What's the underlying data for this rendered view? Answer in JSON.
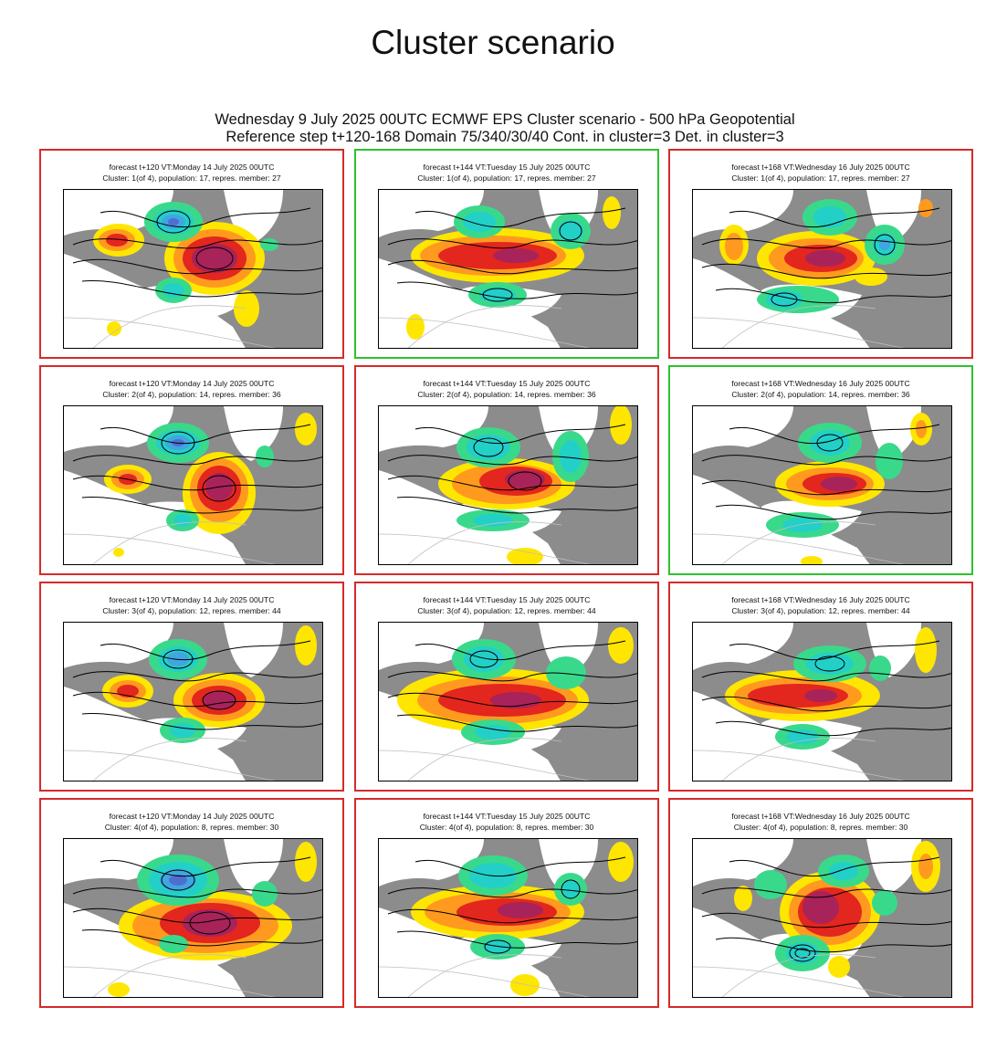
{
  "page_title": "Cluster scenario",
  "header": {
    "line1": "Wednesday 9 July 2025 00UTC ECMWF EPS Cluster scenario - 500 hPa Geopotential",
    "line2": "Reference step t+120-168 Domain 75/340/30/40 Cont. in cluster=3 Det. in cluster=3"
  },
  "colors": {
    "frame_default": "#d62a2a",
    "frame_representative": "#2ec32e",
    "land": "#8c8c8c",
    "ocean": "#ffffff",
    "anomaly_positive": [
      "#ffe600",
      "#ff9a1f",
      "#e3261e",
      "#a8235a"
    ],
    "anomaly_negative": [
      "#39d98c",
      "#22d0c8",
      "#3fa6e0",
      "#4f6fd0"
    ]
  },
  "panels": [
    {
      "title": "forecast t+120 VT:Monday 14 July 2025 00UTC",
      "subtitle": "Cluster: 1(of 4), population: 17, repres. member: 27",
      "representative": false
    },
    {
      "title": "forecast t+144 VT:Tuesday 15 July 2025 00UTC",
      "subtitle": "Cluster: 1(of 4), population: 17, repres. member: 27",
      "representative": true
    },
    {
      "title": "forecast t+168 VT:Wednesday 16 July 2025 00UTC",
      "subtitle": "Cluster: 1(of 4), population: 17, repres. member: 27",
      "representative": false
    },
    {
      "title": "forecast t+120 VT:Monday 14 July 2025 00UTC",
      "subtitle": "Cluster: 2(of 4), population: 14, repres. member: 36",
      "representative": false
    },
    {
      "title": "forecast t+144 VT:Tuesday 15 July 2025 00UTC",
      "subtitle": "Cluster: 2(of 4), population: 14, repres. member: 36",
      "representative": false
    },
    {
      "title": "forecast t+168 VT:Wednesday 16 July 2025 00UTC",
      "subtitle": "Cluster: 2(of 4), population: 14, repres. member: 36",
      "representative": true
    },
    {
      "title": "forecast t+120 VT:Monday 14 July 2025 00UTC",
      "subtitle": "Cluster: 3(of 4), population: 12, repres. member: 44",
      "representative": false
    },
    {
      "title": "forecast t+144 VT:Tuesday 15 July 2025 00UTC",
      "subtitle": "Cluster: 3(of 4), population: 12, repres. member: 44",
      "representative": false
    },
    {
      "title": "forecast t+168 VT:Wednesday 16 July 2025 00UTC",
      "subtitle": "Cluster: 3(of 4), population: 12, repres. member: 44",
      "representative": false
    },
    {
      "title": "forecast t+120 VT:Monday 14 July 2025 00UTC",
      "subtitle": "Cluster: 4(of 4), population: 8, repres. member: 30",
      "representative": false
    },
    {
      "title": "forecast t+144 VT:Tuesday 15 July 2025 00UTC",
      "subtitle": "Cluster: 4(of 4), population: 8, repres. member: 30",
      "representative": false
    },
    {
      "title": "forecast t+168 VT:Wednesday 16 July 2025 00UTC",
      "subtitle": "Cluster: 4(of 4), population: 8, repres. member: 30",
      "representative": false
    }
  ]
}
